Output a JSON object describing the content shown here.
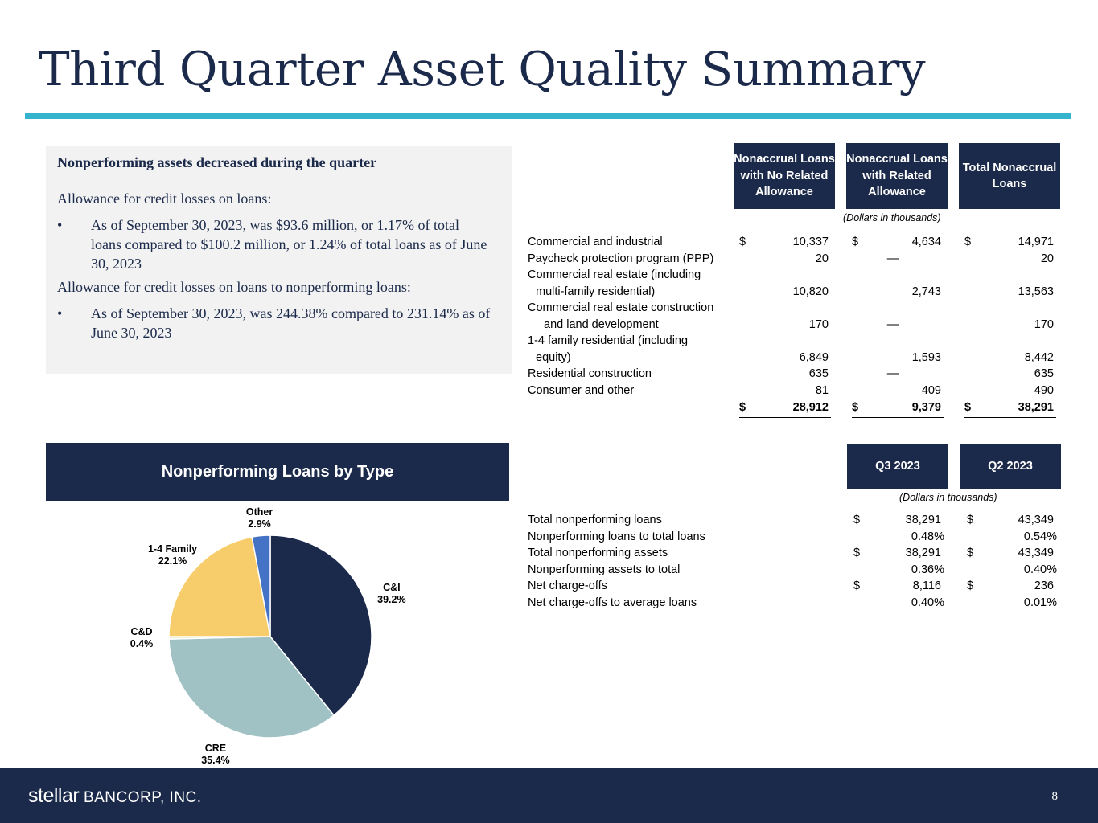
{
  "title": "Third Quarter Asset Quality Summary",
  "colors": {
    "navy": "#1b2a4a",
    "accent": "#35b3cc",
    "pie": [
      "#1b2a4a",
      "#a0c2c4",
      "#f1f1e0",
      "#f7cd6b",
      "#4472c4"
    ]
  },
  "summary": {
    "heading": "Nonperforming assets decreased during the quarter",
    "p1": "Allowance for credit losses on loans:",
    "bullet1": "As of September 30, 2023, was $93.6 million, or 1.17% of total loans compared to $100.2 million, or 1.24% of total loans as of June 30, 2023",
    "p2": "Allowance for credit losses on loans to nonperforming loans:",
    "bullet2": "As of September 30, 2023, was 244.38% compared to 231.14% as of June 30, 2023",
    "bullet_mark": "•"
  },
  "nonaccrual": {
    "headers": [
      "Nonaccrual Loans with No Related Allowance",
      "Nonaccrual Loans with Related Allowance",
      "Total Nonaccrual Loans"
    ],
    "units": "(Dollars in thousands)",
    "dollar": "$",
    "rows": [
      {
        "l1": "Commercial and industrial",
        "l2": "",
        "v": [
          "10,337",
          "4,634",
          "14,971"
        ]
      },
      {
        "l1": "Paycheck protection program (PPP)",
        "l2": "",
        "v": [
          "20",
          "—",
          "20"
        ]
      },
      {
        "l1": "Commercial real estate (including",
        "l2": "multi-family residential)",
        "v": [
          "10,820",
          "2,743",
          "13,563"
        ]
      },
      {
        "l1": "Commercial real estate construction",
        "l2": "and land development",
        "v": [
          "170",
          "—",
          "170"
        ]
      },
      {
        "l1": "1-4 family residential (including",
        "l2": "equity)",
        "v": [
          "6,849",
          "1,593",
          "8,442"
        ]
      },
      {
        "l1": "Residential construction",
        "l2": "",
        "v": [
          "635",
          "—",
          "635"
        ]
      },
      {
        "l1": "Consumer and other",
        "l2": "",
        "v": [
          "81",
          "409",
          "490"
        ]
      }
    ],
    "total": [
      "28,912",
      "9,379",
      "38,291"
    ]
  },
  "metrics": {
    "headers": [
      "Q3 2023",
      "Q2 2023"
    ],
    "units": "(Dollars in thousands)",
    "rows": [
      {
        "label": "Total nonperforming loans",
        "q3": "38,291",
        "q2": "43,349",
        "dollar": true
      },
      {
        "label": "Nonperforming loans to total loans",
        "q3": "0.48%",
        "q2": "0.54%",
        "dollar": false
      },
      {
        "label": "Total nonperforming assets",
        "q3": "38,291",
        "q2": "43,349",
        "dollar": true
      },
      {
        "label": "Nonperforming assets to total",
        "q3": "0.36%",
        "q2": "0.40%",
        "dollar": false
      },
      {
        "label": "Net charge-offs",
        "q3": "8,116",
        "q2": "236",
        "dollar": true
      },
      {
        "label": "Net charge-offs to average loans",
        "q3": "0.40%",
        "q2": "0.01%",
        "dollar": false
      }
    ]
  },
  "pie_title": "Nonperforming Loans by Type",
  "chart_data": {
    "type": "pie",
    "title": "Nonperforming Loans by Type",
    "categories": [
      "C&I",
      "CRE",
      "C&D",
      "1-4 Family",
      "Other"
    ],
    "values": [
      39.2,
      35.4,
      0.4,
      22.1,
      2.9
    ],
    "labels": [
      "39.2%",
      "35.4%",
      "0.4%",
      "22.1%",
      "2.9%"
    ]
  },
  "footer": {
    "logo_a": "stellar",
    "logo_b": " BANCORP, INC.",
    "page": "8"
  }
}
